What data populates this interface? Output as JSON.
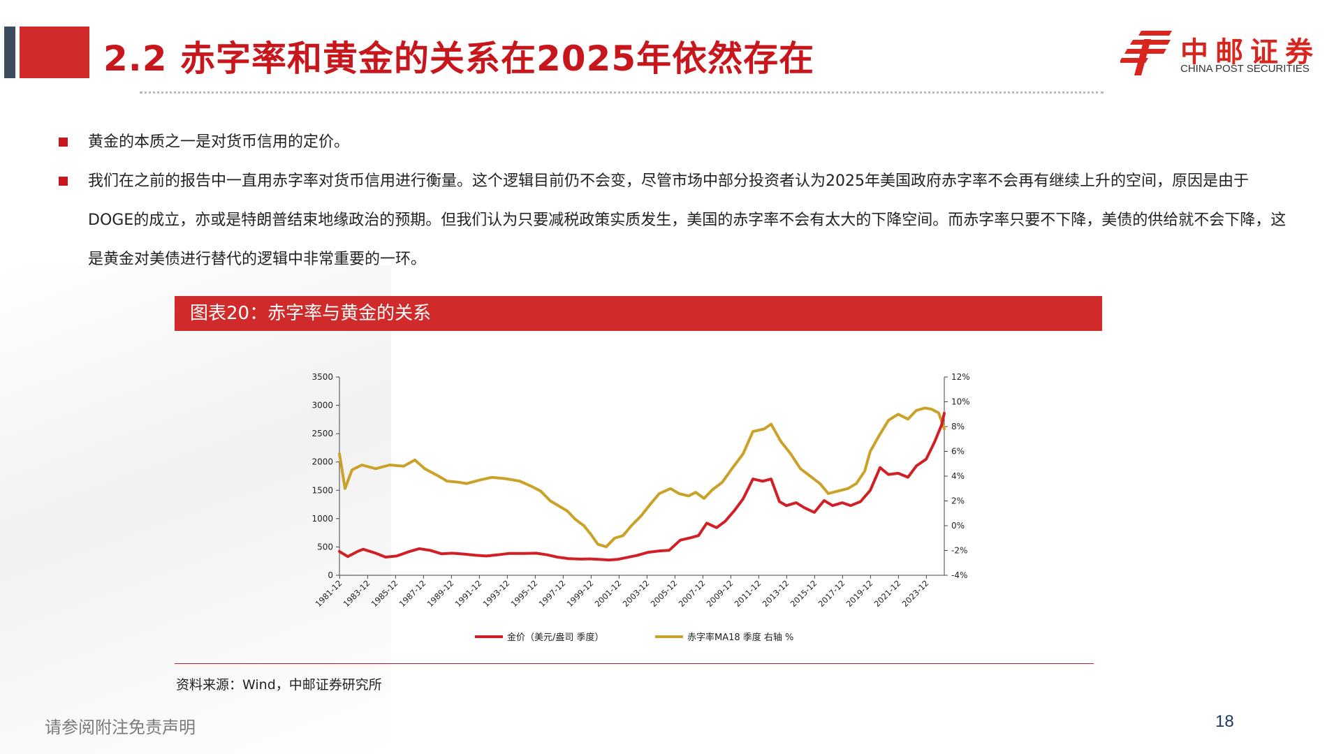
{
  "header": {
    "title": "2.2 赤字率和黄金的关系在2025年依然存在",
    "logo_cn": "中邮证券",
    "logo_en": "CHINA POST SECURITIES"
  },
  "bullets": [
    "黄金的本质之一是对货币信用的定价。",
    "我们在之前的报告中一直用赤字率对货币信用进行衡量。这个逻辑目前仍不会变，尽管市场中部分投资者认为2025年美国政府赤字率不会再有继续上升的空间，原因是由于DOGE的成立，亦或是特朗普结束地缘政治的预期。但我们认为只要减税政策实质发生，美国的赤字率不会有太大的下降空间。而赤字率只要不下降，美债的供给就不会下降，这是黄金对美债进行替代的逻辑中非常重要的一环。"
  ],
  "chart_caption": "图表20：赤字率与黄金的关系",
  "source": "资料来源：Wind，中邮证券研究所",
  "footer": {
    "disclaimer": "请参阅附注免责声明",
    "page_number": "18"
  },
  "colors": {
    "brand_red": "#c8161d",
    "gold_series": "#c9a227",
    "deficit_series": "#d21f26"
  },
  "chart_data": {
    "type": "line",
    "x_tick_labels": [
      "1981-12",
      "1983-12",
      "1985-12",
      "1987-12",
      "1989-12",
      "1991-12",
      "1993-12",
      "1995-12",
      "1997-12",
      "1999-12",
      "2001-12",
      "2003-12",
      "2005-12",
      "2007-12",
      "2009-12",
      "2011-12",
      "2013-12",
      "2015-12",
      "2017-12",
      "2019-12",
      "2021-12",
      "2023-12"
    ],
    "y_left": {
      "ylim": [
        0,
        3500
      ],
      "ticks": [
        "0",
        "500",
        "1000",
        "1500",
        "2000",
        "2500",
        "3000",
        "3500"
      ]
    },
    "y_right": {
      "ylim": [
        -4,
        12
      ],
      "ticks": [
        "-4%",
        "-2%",
        "0%",
        "2%",
        "4%",
        "6%",
        "8%",
        "10%",
        "12%"
      ]
    },
    "x_range": [
      1981.9,
      2025.2
    ],
    "grid": false,
    "legend": "bottom",
    "series": [
      {
        "name": "金价（美元/盎司 季度）",
        "axis": "left",
        "points": [
          [
            1981.9,
            420
          ],
          [
            1982.5,
            330
          ],
          [
            1983.2,
            420
          ],
          [
            1983.6,
            460
          ],
          [
            1984.5,
            390
          ],
          [
            1985.2,
            320
          ],
          [
            1986.0,
            340
          ],
          [
            1986.8,
            410
          ],
          [
            1987.6,
            470
          ],
          [
            1988.4,
            440
          ],
          [
            1989.2,
            380
          ],
          [
            1990.0,
            390
          ],
          [
            1990.8,
            375
          ],
          [
            1991.6,
            355
          ],
          [
            1992.4,
            340
          ],
          [
            1993.2,
            360
          ],
          [
            1994.0,
            385
          ],
          [
            1995.0,
            385
          ],
          [
            1996.0,
            390
          ],
          [
            1996.8,
            360
          ],
          [
            1997.5,
            320
          ],
          [
            1998.3,
            295
          ],
          [
            1999.2,
            285
          ],
          [
            1999.8,
            290
          ],
          [
            2000.5,
            280
          ],
          [
            2001.2,
            270
          ],
          [
            2001.8,
            280
          ],
          [
            2002.5,
            315
          ],
          [
            2003.2,
            350
          ],
          [
            2004.0,
            405
          ],
          [
            2004.8,
            430
          ],
          [
            2005.5,
            440
          ],
          [
            2006.3,
            620
          ],
          [
            2007.0,
            660
          ],
          [
            2007.6,
            700
          ],
          [
            2008.2,
            920
          ],
          [
            2008.9,
            840
          ],
          [
            2009.5,
            950
          ],
          [
            2010.2,
            1150
          ],
          [
            2010.8,
            1350
          ],
          [
            2011.5,
            1700
          ],
          [
            2012.2,
            1660
          ],
          [
            2012.8,
            1700
          ],
          [
            2013.4,
            1300
          ],
          [
            2013.9,
            1230
          ],
          [
            2014.6,
            1280
          ],
          [
            2015.2,
            1190
          ],
          [
            2015.9,
            1110
          ],
          [
            2016.6,
            1320
          ],
          [
            2017.2,
            1230
          ],
          [
            2017.9,
            1280
          ],
          [
            2018.5,
            1230
          ],
          [
            2019.2,
            1300
          ],
          [
            2019.9,
            1500
          ],
          [
            2020.6,
            1900
          ],
          [
            2021.2,
            1780
          ],
          [
            2021.9,
            1800
          ],
          [
            2022.6,
            1730
          ],
          [
            2023.2,
            1930
          ],
          [
            2023.9,
            2050
          ],
          [
            2024.5,
            2350
          ],
          [
            2025.0,
            2650
          ],
          [
            2025.2,
            2860
          ]
        ]
      },
      {
        "name": "赤字率MA18 季度 右轴 %",
        "axis": "right",
        "points": [
          [
            1981.9,
            5.8
          ],
          [
            1982.3,
            3.0
          ],
          [
            1982.8,
            4.5
          ],
          [
            1983.5,
            4.9
          ],
          [
            1984.5,
            4.6
          ],
          [
            1985.5,
            4.9
          ],
          [
            1986.5,
            4.8
          ],
          [
            1987.3,
            5.3
          ],
          [
            1988.0,
            4.6
          ],
          [
            1989.0,
            4.0
          ],
          [
            1989.6,
            3.6
          ],
          [
            1990.5,
            3.5
          ],
          [
            1991.0,
            3.4
          ],
          [
            1992.0,
            3.7
          ],
          [
            1992.8,
            3.9
          ],
          [
            1993.8,
            3.8
          ],
          [
            1994.8,
            3.6
          ],
          [
            1995.6,
            3.2
          ],
          [
            1996.3,
            2.8
          ],
          [
            1997.0,
            2.0
          ],
          [
            1997.6,
            1.6
          ],
          [
            1998.2,
            1.2
          ],
          [
            1998.8,
            0.5
          ],
          [
            1999.4,
            0.0
          ],
          [
            1999.9,
            -0.7
          ],
          [
            2000.4,
            -1.5
          ],
          [
            2001.0,
            -1.7
          ],
          [
            2001.6,
            -1.0
          ],
          [
            2002.2,
            -0.8
          ],
          [
            2002.8,
            0.0
          ],
          [
            2003.5,
            0.8
          ],
          [
            2004.2,
            1.8
          ],
          [
            2004.8,
            2.6
          ],
          [
            2005.6,
            3.0
          ],
          [
            2006.2,
            2.6
          ],
          [
            2006.9,
            2.4
          ],
          [
            2007.4,
            2.7
          ],
          [
            2008.0,
            2.2
          ],
          [
            2008.6,
            2.9
          ],
          [
            2009.3,
            3.5
          ],
          [
            2010.0,
            4.6
          ],
          [
            2010.8,
            5.8
          ],
          [
            2011.5,
            7.6
          ],
          [
            2012.3,
            7.8
          ],
          [
            2012.8,
            8.2
          ],
          [
            2013.5,
            6.8
          ],
          [
            2014.2,
            5.8
          ],
          [
            2014.9,
            4.6
          ],
          [
            2015.6,
            4.0
          ],
          [
            2016.3,
            3.4
          ],
          [
            2016.9,
            2.6
          ],
          [
            2017.6,
            2.8
          ],
          [
            2018.3,
            3.0
          ],
          [
            2018.9,
            3.4
          ],
          [
            2019.5,
            4.4
          ],
          [
            2019.9,
            6.0
          ],
          [
            2020.5,
            7.2
          ],
          [
            2021.2,
            8.5
          ],
          [
            2021.9,
            9.0
          ],
          [
            2022.6,
            8.6
          ],
          [
            2023.2,
            9.3
          ],
          [
            2023.8,
            9.5
          ],
          [
            2024.3,
            9.4
          ],
          [
            2024.8,
            9.1
          ],
          [
            2025.2,
            7.8
          ]
        ]
      }
    ]
  }
}
